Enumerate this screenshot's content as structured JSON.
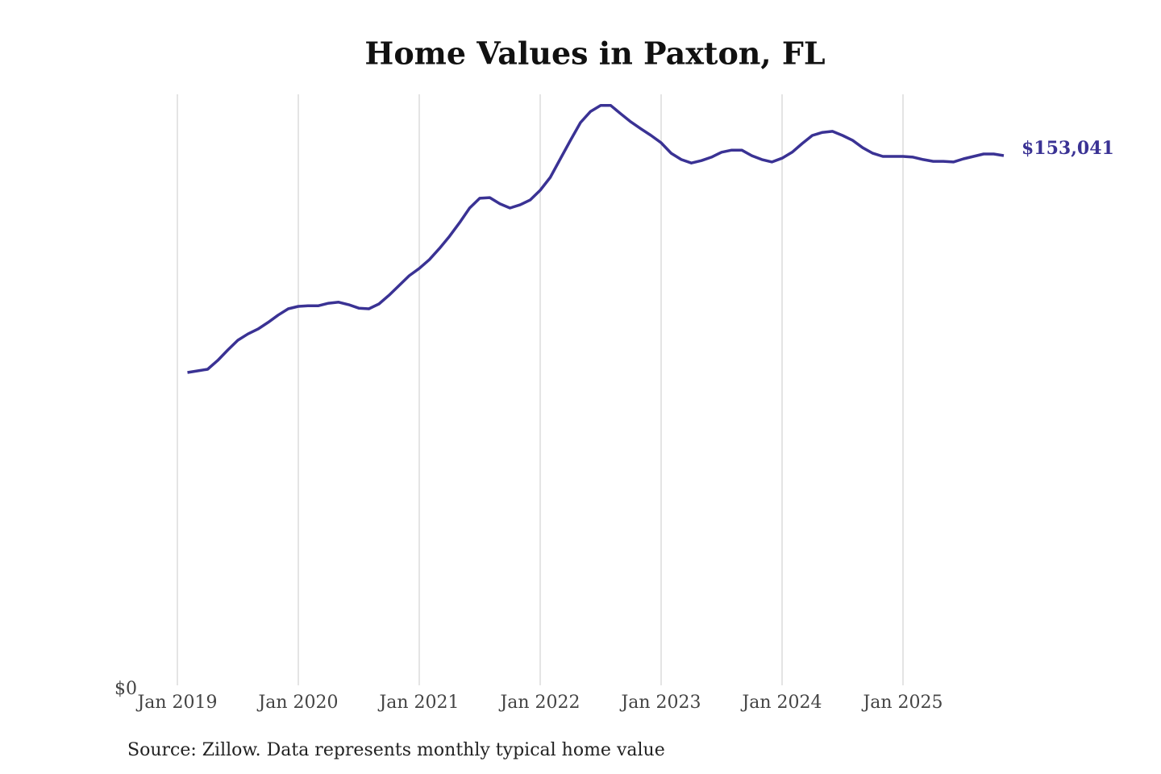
{
  "chart_data": {
    "type": "line",
    "title": "Home Values in Paxton, FL",
    "source": "Source: Zillow. Data represents monthly typical home value",
    "x": [
      "2019-02",
      "2019-03",
      "2019-04",
      "2019-05",
      "2019-06",
      "2019-07",
      "2019-08",
      "2019-09",
      "2019-10",
      "2019-11",
      "2019-12",
      "2020-01",
      "2020-02",
      "2020-03",
      "2020-04",
      "2020-05",
      "2020-06",
      "2020-07",
      "2020-08",
      "2020-09",
      "2020-10",
      "2020-11",
      "2020-12",
      "2021-01",
      "2021-02",
      "2021-03",
      "2021-04",
      "2021-05",
      "2021-06",
      "2021-07",
      "2021-08",
      "2021-09",
      "2021-10",
      "2021-11",
      "2021-12",
      "2022-01",
      "2022-02",
      "2022-03",
      "2022-04",
      "2022-05",
      "2022-06",
      "2022-07",
      "2022-08",
      "2022-09",
      "2022-10",
      "2022-11",
      "2022-12",
      "2023-01",
      "2023-02",
      "2023-03",
      "2023-04",
      "2023-05",
      "2023-06",
      "2023-07",
      "2023-08",
      "2023-09",
      "2023-10",
      "2023-11",
      "2023-12",
      "2024-01",
      "2024-02",
      "2024-03",
      "2024-04",
      "2024-05",
      "2024-06",
      "2024-07",
      "2024-08",
      "2024-09",
      "2024-10",
      "2024-11",
      "2024-12",
      "2025-01",
      "2025-02",
      "2025-03",
      "2025-04",
      "2025-05",
      "2025-06",
      "2025-07",
      "2025-08",
      "2025-09",
      "2025-10",
      "2025-11"
    ],
    "series": [
      {
        "color": "#3a3294",
        "values": [
          90846,
          91300,
          91770,
          94300,
          97300,
          100100,
          101900,
          103300,
          105200,
          107300,
          109100,
          109800,
          110000,
          110000,
          110700,
          111000,
          110300,
          109300,
          109100,
          110500,
          113000,
          115800,
          118600,
          120700,
          123200,
          126400,
          129900,
          133800,
          138000,
          140800,
          141000,
          139200,
          138000,
          138900,
          140300,
          143100,
          146800,
          152100,
          157400,
          162500,
          165700,
          167400,
          167400,
          165000,
          162700,
          160700,
          158800,
          156700,
          153700,
          151900,
          150900,
          151600,
          152600,
          154000,
          154600,
          154600,
          153000,
          151900,
          151200,
          152300,
          154000,
          156500,
          158800,
          159700,
          160000,
          158800,
          157400,
          155300,
          153700,
          152800,
          152800,
          152800,
          152600,
          151900,
          151400,
          151400,
          151200,
          152100,
          152800,
          153500,
          153500,
          153041
        ],
        "end_label": "$153,041"
      }
    ],
    "xlim": [
      "2019-01",
      "2025-11"
    ],
    "xticks": [
      {
        "value": "2019-01",
        "label": "Jan 2019"
      },
      {
        "value": "2020-01",
        "label": "Jan 2020"
      },
      {
        "value": "2021-01",
        "label": "Jan 2021"
      },
      {
        "value": "2022-01",
        "label": "Jan 2022"
      },
      {
        "value": "2023-01",
        "label": "Jan 2023"
      },
      {
        "value": "2024-01",
        "label": "Jan 2024"
      },
      {
        "value": "2025-01",
        "label": "Jan 2025"
      }
    ],
    "ylim": [
      0,
      170000
    ],
    "yticks": [
      {
        "value": 0,
        "label": "$0"
      }
    ],
    "grid": true
  }
}
